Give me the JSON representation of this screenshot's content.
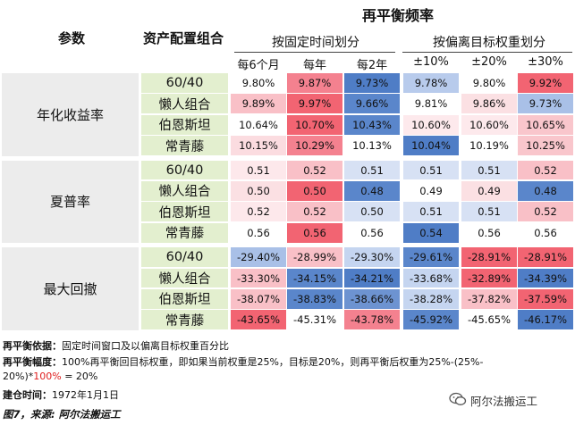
{
  "title": "再平衡频率",
  "header": {
    "param_label": "参数",
    "portfolio_label": "资产配置组合",
    "group_time": "按固定时间划分",
    "group_dev": "按偏离目标权重划分",
    "columns": [
      "每6个月",
      "每年",
      "每2年",
      "±10%",
      "±20%",
      "±30%"
    ]
  },
  "metrics": [
    {
      "name": "年化收益率",
      "rows": [
        {
          "portfolio": "60/40",
          "values": [
            "9.80%",
            "9.87%",
            "9.73%",
            "9.78%",
            "9.80%",
            "9.92%"
          ]
        },
        {
          "portfolio": "懒人组合",
          "values": [
            "9.89%",
            "9.97%",
            "9.66%",
            "9.81%",
            "9.86%",
            "9.73%"
          ]
        },
        {
          "portfolio": "伯恩斯坦",
          "values": [
            "10.64%",
            "10.70%",
            "10.43%",
            "10.60%",
            "10.60%",
            "10.65%"
          ]
        },
        {
          "portfolio": "常青藤",
          "values": [
            "10.15%",
            "10.29%",
            "10.13%",
            "10.04%",
            "10.19%",
            "10.25%"
          ]
        }
      ]
    },
    {
      "name": "夏普率",
      "rows": [
        {
          "portfolio": "60/40",
          "values": [
            "0.51",
            "0.52",
            "0.51",
            "0.51",
            "0.51",
            "0.52"
          ]
        },
        {
          "portfolio": "懒人组合",
          "values": [
            "0.50",
            "0.50",
            "0.48",
            "0.49",
            "0.49",
            "0.48"
          ]
        },
        {
          "portfolio": "伯恩斯坦",
          "values": [
            "0.52",
            "0.52",
            "0.50",
            "0.51",
            "0.51",
            "0.52"
          ]
        },
        {
          "portfolio": "常青藤",
          "values": [
            "0.56",
            "0.56",
            "0.56",
            "0.54",
            "0.56",
            "0.56"
          ]
        }
      ]
    },
    {
      "name": "最大回撤",
      "rows": [
        {
          "portfolio": "60/40",
          "values": [
            "-29.40%",
            "-28.99%",
            "-29.30%",
            "-29.61%",
            "-28.91%",
            "-28.91%"
          ]
        },
        {
          "portfolio": "懒人组合",
          "values": [
            "-33.30%",
            "-34.15%",
            "-34.21%",
            "-33.68%",
            "-32.89%",
            "-34.39%"
          ]
        },
        {
          "portfolio": "伯恩斯坦",
          "values": [
            "-38.07%",
            "-38.83%",
            "-38.66%",
            "-38.28%",
            "-37.82%",
            "-37.59%"
          ]
        },
        {
          "portfolio": "常青藤",
          "values": [
            "-43.65%",
            "-45.31%",
            "-43.78%",
            "-45.92%",
            "-45.65%",
            "-46.17%"
          ]
        }
      ]
    }
  ],
  "cell_colors": [
    [
      "#ffffff",
      "#f4818f",
      "#4f7dc6",
      "#b8cbec",
      "#ffffff",
      "#f26472"
    ],
    [
      "#f9c0c7",
      "#f26472",
      "#5a86cb",
      "#ffffff",
      "#fbe0e3",
      "#a9c0e7"
    ],
    [
      "#ffffff",
      "#f26472",
      "#5a86cb",
      "#fde9ec",
      "#fde9ec",
      "#f9c6cc"
    ],
    [
      "#fbdce0",
      "#f4818f",
      "#ffffff",
      "#4f7dc6",
      "#ffffff",
      "#f9c6cc"
    ],
    [
      "#fde8eb",
      "#f9c0c7",
      "#d7e1f4",
      "#d7e1f4",
      "#d7e1f4",
      "#f9c0c7"
    ],
    [
      "#fbe0e3",
      "#f26472",
      "#5a86cb",
      "#ffffff",
      "#fbe0e3",
      "#5a86cb"
    ],
    [
      "#fde8eb",
      "#f9c0c7",
      "#d7e1f4",
      "#d7e1f4",
      "#d7e1f4",
      "#f9c0c7"
    ],
    [
      "#ffffff",
      "#f26472",
      "#ffffff",
      "#4f7dc6",
      "#ffffff",
      "#ffffff"
    ],
    [
      "#a9c0e7",
      "#f9c0c7",
      "#c5d5f0",
      "#5a86cb",
      "#f26472",
      "#f26472"
    ],
    [
      "#f9c0c7",
      "#5a86cb",
      "#4f7dc6",
      "#c5d5f0",
      "#f26472",
      "#4f7dc6"
    ],
    [
      "#f9c0c7",
      "#5a86cb",
      "#6d93d1",
      "#c5d5f0",
      "#f9c0c7",
      "#f26472"
    ],
    [
      "#f26472",
      "#ffffff",
      "#f4818f",
      "#5a86cb",
      "#ffffff",
      "#4f7dc6"
    ]
  ],
  "notes": {
    "basis_label": "再平衡依据：",
    "basis_text": "固定时间窗口及以偏离目标权重百分比",
    "magnitude_label": "再平衡幅度：",
    "magnitude_text1": "100%再平衡回目标权重，即如果当前权重是25%，目标是20%，则再平衡后权重为25%-(25%-",
    "magnitude_text2a": "20%)*",
    "magnitude_text2b": "100%",
    "magnitude_text2c": " = 20%",
    "start_label": "建仓时间：",
    "start_text": "1972年1月1日",
    "caption": "图7，来源: 阿尔法搬运工"
  },
  "watermark": "阿尔法搬运工",
  "watermark_icon": "wechat-icon"
}
